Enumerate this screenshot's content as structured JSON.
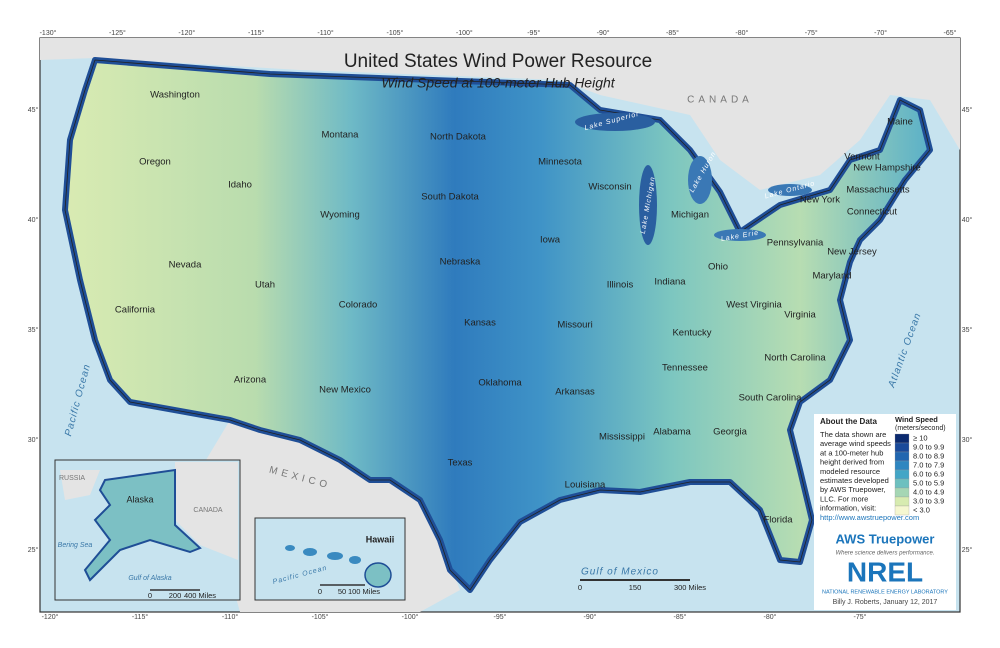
{
  "title": "United States Wind Power Resource",
  "subtitle": "Wind Speed at 100-meter Hub Height",
  "countries": [
    "CANADA",
    "MEXICO"
  ],
  "water_labels": [
    "Pacific Ocean",
    "Atlantic Ocean",
    "Gulf of Mexico",
    "Lake Superior",
    "Lake Michigan",
    "Lake Huron",
    "Lake Erie",
    "Lake Ontario"
  ],
  "states": [
    "Washington",
    "Oregon",
    "Idaho",
    "Montana",
    "Wyoming",
    "Nevada",
    "Utah",
    "California",
    "Arizona",
    "Colorado",
    "New Mexico",
    "North Dakota",
    "South Dakota",
    "Nebraska",
    "Kansas",
    "Oklahoma",
    "Texas",
    "Minnesota",
    "Iowa",
    "Missouri",
    "Arkansas",
    "Louisiana",
    "Wisconsin",
    "Illinois",
    "Michigan",
    "Indiana",
    "Ohio",
    "Kentucky",
    "Tennessee",
    "Mississippi",
    "Alabama",
    "Georgia",
    "Florida",
    "South Carolina",
    "North Carolina",
    "Virginia",
    "West Virginia",
    "Pennsylvania",
    "New York",
    "Maine",
    "Vermont",
    "New Hampshire",
    "Massachusetts",
    "Connecticut",
    "New Jersey",
    "Maryland"
  ],
  "top_ticks": [
    "-130°",
    "-125°",
    "-120°",
    "-115°",
    "-110°",
    "-105°",
    "-100°",
    "-95°",
    "-90°",
    "-85°",
    "-80°",
    "-75°",
    "-70°",
    "-65°"
  ],
  "bottom_ticks": [
    "-120°",
    "-115°",
    "-110°",
    "-105°",
    "-100°",
    "-95°",
    "-90°",
    "-85°",
    "-80°",
    "-75°"
  ],
  "side_ticks": [
    "45°",
    "40°",
    "35°",
    "30°",
    "25°"
  ],
  "legend": {
    "title": "Wind Speed",
    "unit": "(meters/second)",
    "items": [
      {
        "label": "≥ 10",
        "color": "#0b2a6f"
      },
      {
        "label": "9.0 to 9.9",
        "color": "#1a4a9a"
      },
      {
        "label": "8.0 to 8.9",
        "color": "#2166b0"
      },
      {
        "label": "7.0 to 7.9",
        "color": "#2f86c0"
      },
      {
        "label": "6.0 to 6.9",
        "color": "#43a6c6"
      },
      {
        "label": "5.0 to 5.9",
        "color": "#6dc0bf"
      },
      {
        "label": "4.0 to 4.9",
        "color": "#a5d6b4"
      },
      {
        "label": "3.0 to 3.9",
        "color": "#d7ebb0"
      },
      {
        "label": "< 3.0",
        "color": "#f5f7d0"
      }
    ]
  },
  "about": {
    "heading": "About the Data",
    "lines": [
      "The data shown are",
      "average wind speeds",
      "at a 100-meter hub",
      "height derived from",
      "modeled resource",
      "estimates developed",
      "by AWS Truepower,",
      "LLC. For more",
      "information, visit:",
      "http://www.awstruepower.com"
    ]
  },
  "aws": {
    "name": "AWS Truepower",
    "tagline": "Where science delivers performance."
  },
  "nrel": {
    "name": "NREL",
    "full": "NATIONAL RENEWABLE ENERGY LABORATORY",
    "credit": "Billy J. Roberts, January 12, 2017"
  },
  "insets": {
    "alaska": {
      "title": "Alaska",
      "labels": [
        "RUSSIA",
        "CANADA",
        "Bering Sea",
        "Gulf of Alaska"
      ],
      "scale": [
        "0",
        "200",
        "400 Miles"
      ]
    },
    "hawaii": {
      "title": "Hawaii",
      "labels": [
        "Pacific Ocean"
      ],
      "scale": [
        "0",
        "50",
        "100 Miles"
      ]
    }
  },
  "scale": [
    "0",
    "150",
    "300 Miles"
  ]
}
